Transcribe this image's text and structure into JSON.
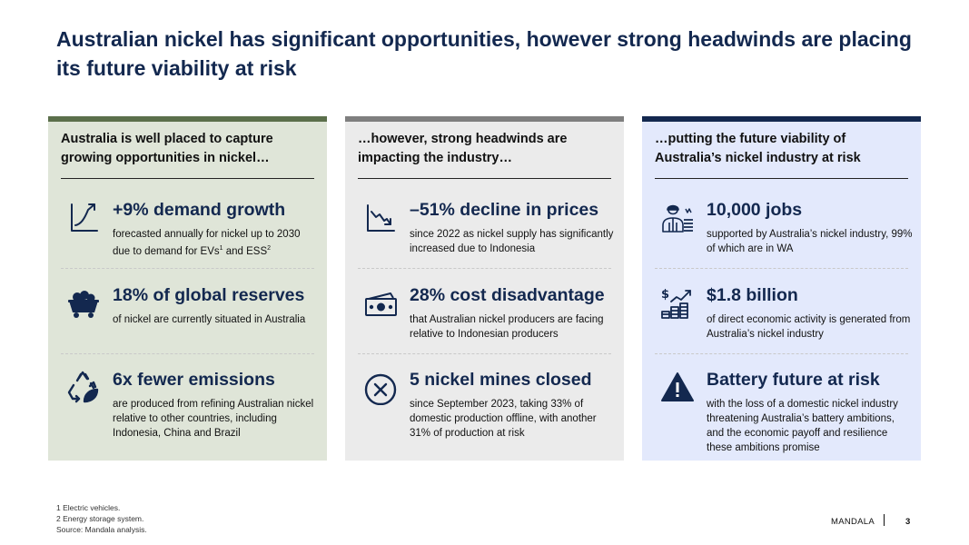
{
  "title": "Australian nickel has significant opportunities, however strong headwinds are placing its future viability at risk",
  "colors": {
    "navy": "#13284f",
    "col1_bg": "#dfe5d8",
    "col1_bar": "#5b6f4b",
    "col2_bg": "#ebebeb",
    "col2_bar": "#7f7f7f",
    "col3_bg": "#e3e9fc",
    "col3_bar": "#13284f"
  },
  "columns": [
    {
      "heading": "Australia is well placed to capture growing opportunities in nickel…",
      "items": [
        {
          "icon": "growth-chart-icon",
          "stat": "+9% demand growth",
          "desc": "forecasted annually for nickel up to 2030 due to demand for EVs",
          "sup1": "1",
          "mid": " and ESS",
          "sup2": "2"
        },
        {
          "icon": "mine-cart-icon",
          "stat": "18% of global reserves",
          "desc": "of nickel are currently situated in Australia"
        },
        {
          "icon": "recycle-leaf-icon",
          "stat": "6x fewer emissions",
          "desc": "are produced from refining Australian nickel relative to other countries, including Indonesia, China and Brazil"
        }
      ]
    },
    {
      "heading": "…however, strong headwinds are impacting the industry…",
      "items": [
        {
          "icon": "declining-chart-icon",
          "stat": "–51% decline in prices",
          "desc": "since 2022 as nickel supply has significantly increased due to Indonesia"
        },
        {
          "icon": "banknotes-icon",
          "stat": "28% cost disadvantage",
          "desc": "that Australian nickel producers are facing relative to Indonesian producers"
        },
        {
          "icon": "closed-x-circle-icon",
          "stat": "5 nickel mines closed",
          "desc": "since September 2023, taking 33% of domestic production offline, with another 31% of production at risk"
        }
      ]
    },
    {
      "heading": "…putting the future viability of Australia’s nickel industry at risk",
      "items": [
        {
          "icon": "worker-icon",
          "stat": "10,000 jobs",
          "desc": "supported by Australia’s nickel industry, 99% of which are in WA"
        },
        {
          "icon": "economic-growth-icon",
          "stat": "$1.8 billion",
          "desc": "of direct economic activity is generated from Australia’s nickel industry"
        },
        {
          "icon": "warning-icon",
          "stat": "Battery future at risk",
          "desc": "with the loss of a domestic nickel industry threatening Australia’s battery ambitions, and the economic payoff and resilience these ambitions promise"
        }
      ]
    }
  ],
  "footnotes": [
    "1 Electric vehicles.",
    "2 Energy storage system.",
    "Source: Mandala analysis."
  ],
  "brand": "MANDALA",
  "page_number": "3"
}
